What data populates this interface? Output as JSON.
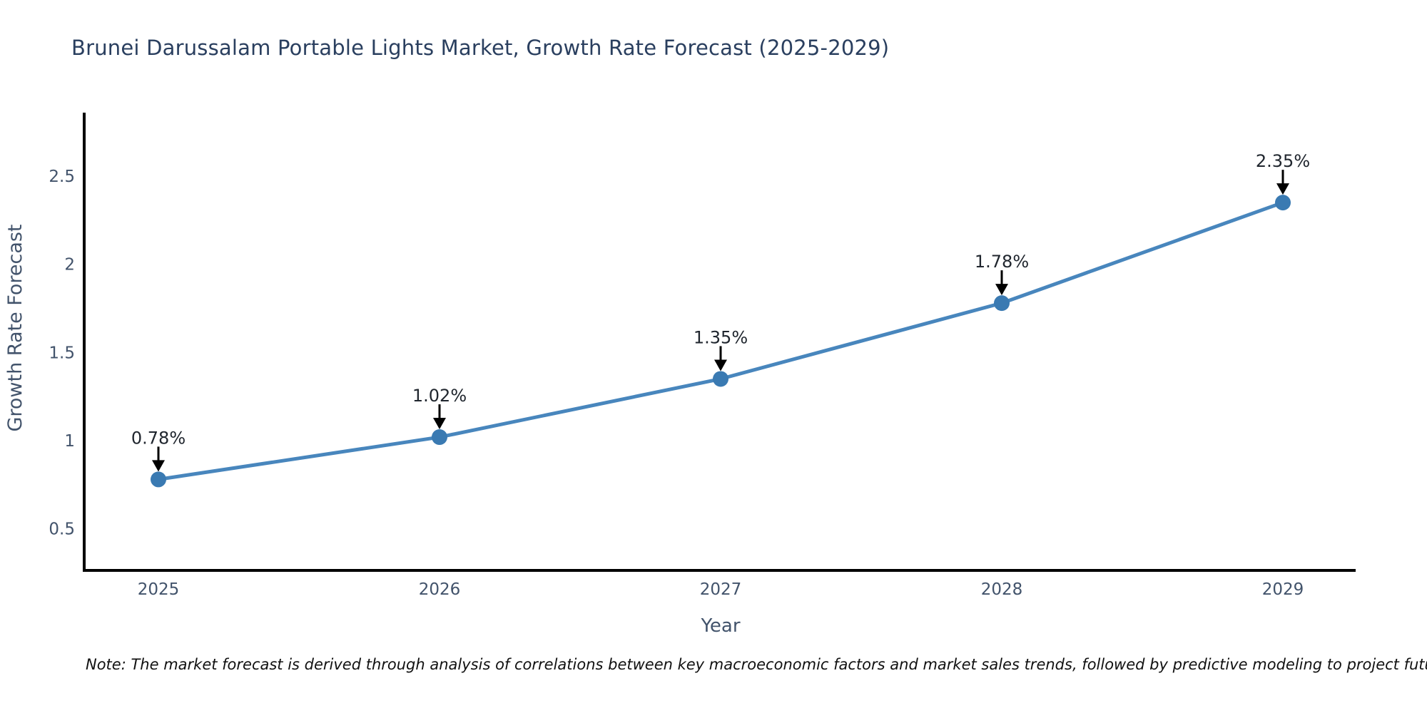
{
  "chart_data": {
    "type": "line",
    "title": "Brunei Darussalam Portable Lights Market, Growth Rate Forecast (2025-2029)",
    "xlabel": "Year",
    "ylabel": "Growth Rate Forecast",
    "x": [
      2025,
      2026,
      2027,
      2028,
      2029
    ],
    "xticks": [
      "2025",
      "2026",
      "2027",
      "2028",
      "2029"
    ],
    "series": [
      {
        "name": "Growth Rate Forecast",
        "values": [
          0.78,
          1.02,
          1.35,
          1.78,
          2.35
        ]
      }
    ],
    "point_labels": [
      "0.78%",
      "1.02%",
      "1.35%",
      "1.78%",
      "2.35%"
    ],
    "yticks": [
      0.5,
      1,
      1.5,
      2,
      2.5
    ],
    "ylim": [
      0.26,
      2.86
    ],
    "grid": false,
    "legend_position": "none",
    "annotation_style": "percentage label with downward arrow above each marker",
    "colors": {
      "line": "#4886bd",
      "marker": "#3a7ab2",
      "axis": "#000000",
      "arrow": "#000000",
      "tick_text": "#42536b",
      "axis_title_text": "#42536b",
      "title_text": "#2a3f5f",
      "annotation_text": "#20262e",
      "note_text": "#111111",
      "background": "#ffffff"
    }
  },
  "note": "Note: The market forecast is derived through analysis of correlations between key macroeconomic factors and market sales trends, followed by predictive modeling to project future sales"
}
